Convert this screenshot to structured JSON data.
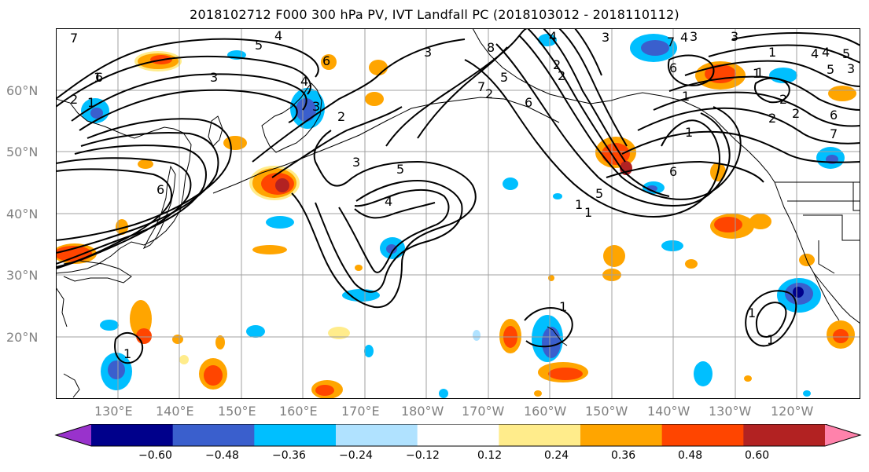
{
  "title": "2018102712 F000 300 hPa PV, IVT Landfall PC (2018103012 - 2018110112)",
  "lat_labels": [
    "60°N",
    "50°N",
    "40°N",
    "30°N",
    "20°N"
  ],
  "lon_labels": [
    "130°E",
    "140°E",
    "150°E",
    "160°E",
    "170°E",
    "180°W",
    "170°W",
    "160°W",
    "150°W",
    "140°W",
    "130°W",
    "120°W"
  ],
  "pv_contour_labels": [
    "7",
    "5",
    "4",
    "3",
    "6",
    "6",
    "4",
    "3",
    "2",
    "3",
    "5",
    "4",
    "2",
    "3",
    "6",
    "7",
    "8",
    "5",
    "4",
    "6",
    "7",
    "3",
    "2",
    "3",
    "5",
    "2",
    "1",
    "4",
    "6",
    "5",
    "4",
    "3",
    "2",
    "1",
    "7",
    "2",
    "1",
    "6",
    "5",
    "4",
    "3",
    "2",
    "1",
    "1",
    "6",
    "1",
    "1",
    "1",
    "1",
    "1",
    "2",
    "1",
    "1",
    "1"
  ],
  "colorbar": {
    "ticks": [
      "−0.60",
      "−0.48",
      "−0.36",
      "−0.24",
      "−0.12",
      "0.12",
      "0.24",
      "0.36",
      "0.48",
      "0.60"
    ],
    "colors": [
      "#9932cc",
      "#00008b",
      "#3a5fcd",
      "#00bfff",
      "#b0e2ff",
      "#ffffff",
      "#ffec8b",
      "#ffa500",
      "#ff4500",
      "#b22222",
      "#ff82ab"
    ]
  },
  "colors": {
    "contour": "#000000",
    "grid": "#a0a0a0",
    "coast": "#000000",
    "positive_light": "#ffec8b",
    "positive_mid": "#ffa500",
    "positive_strong": "#ff4500",
    "positive_max": "#b22222",
    "negative_light": "#b0e2ff",
    "negative_mid": "#00bfff",
    "negative_strong": "#3a5fcd",
    "negative_max": "#00008b"
  }
}
